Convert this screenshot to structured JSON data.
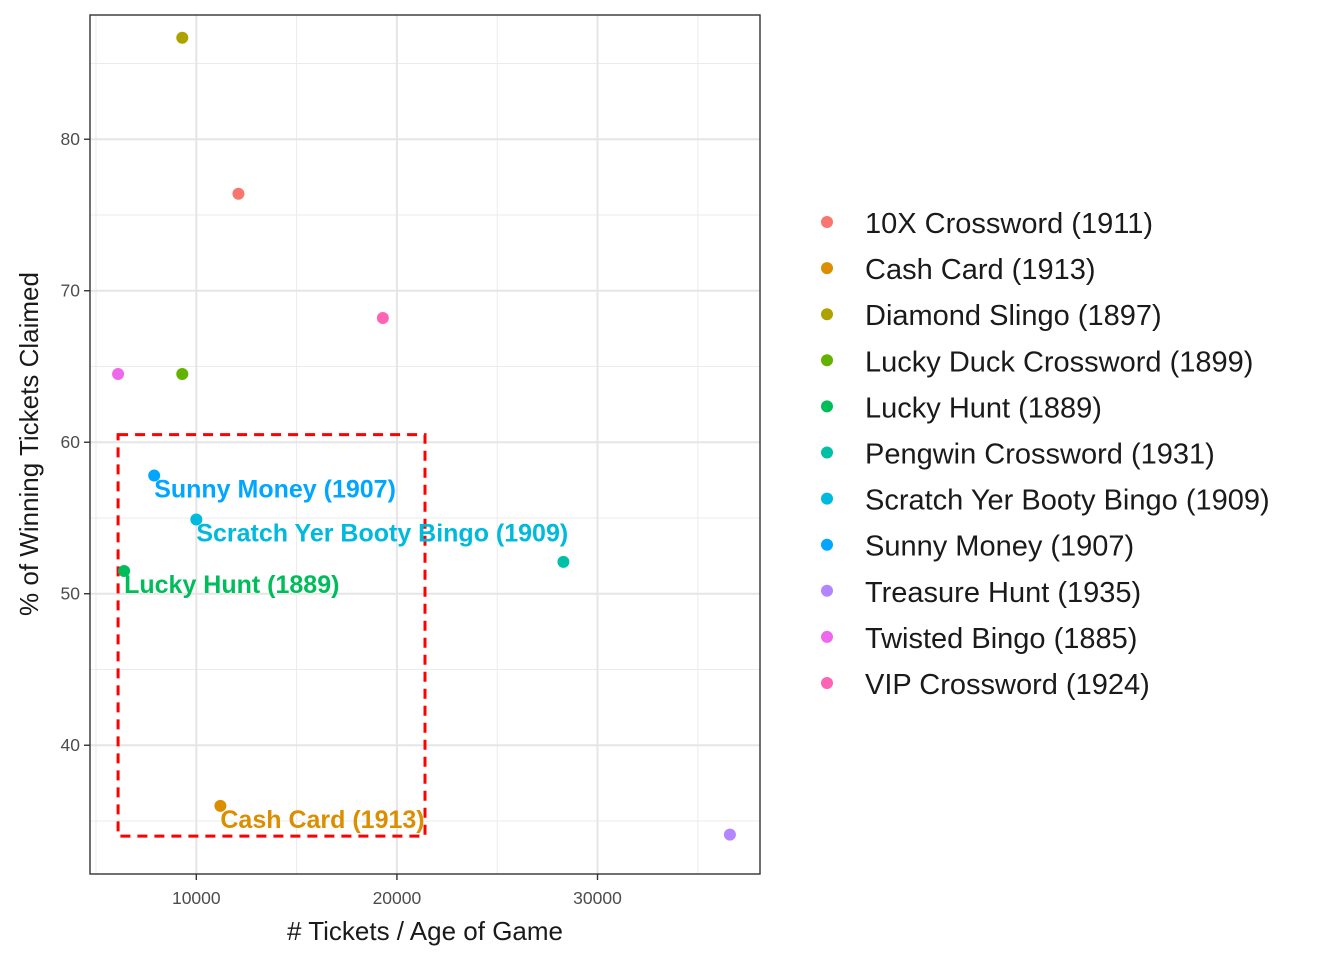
{
  "chart_data": {
    "type": "scatter",
    "xlabel": "# Tickets / Age of Game",
    "ylabel": "% of Winning Tickets Claimed",
    "xlim": [
      4700,
      38100
    ],
    "ylim": [
      31.5,
      88.2
    ],
    "x_ticks": [
      10000,
      20000,
      30000
    ],
    "y_ticks": [
      40,
      50,
      60,
      70,
      80
    ],
    "grid": true,
    "legend_position": "right",
    "series": [
      {
        "name": "10X Crossword (1911)",
        "color": "#F8766D",
        "x": 12100,
        "y": 76.4,
        "label": ""
      },
      {
        "name": "Cash Card (1913)",
        "color": "#DB8E00",
        "x": 11200,
        "y": 36.0,
        "label": "Cash Card (1913)"
      },
      {
        "name": "Diamond Slingo (1897)",
        "color": "#AEA200",
        "x": 9300,
        "y": 86.7,
        "label": ""
      },
      {
        "name": "Lucky Duck Crossword (1899)",
        "color": "#64B200",
        "x": 9300,
        "y": 64.5,
        "label": ""
      },
      {
        "name": "Lucky Hunt (1889)",
        "color": "#00BD5C",
        "x": 6400,
        "y": 51.5,
        "label": "Lucky Hunt (1889)"
      },
      {
        "name": "Pengwin Crossword (1931)",
        "color": "#00C1A7",
        "x": 28300,
        "y": 52.1,
        "label": ""
      },
      {
        "name": "Scratch Yer Booty Bingo (1909)",
        "color": "#00BADE",
        "x": 10000,
        "y": 54.9,
        "label": "Scratch Yer Booty Bingo (1909)"
      },
      {
        "name": "Sunny Money (1907)",
        "color": "#00A6FF",
        "x": 7900,
        "y": 57.8,
        "label": "Sunny Money (1907)"
      },
      {
        "name": "Treasure Hunt (1935)",
        "color": "#B385FF",
        "x": 36600,
        "y": 34.1,
        "label": ""
      },
      {
        "name": "Twisted Bingo (1885)",
        "color": "#EF67EB",
        "x": 6100,
        "y": 64.5,
        "label": ""
      },
      {
        "name": "VIP Crossword (1924)",
        "color": "#FF63B6",
        "x": 19300,
        "y": 68.2,
        "label": ""
      }
    ],
    "highlight_box": {
      "x_range": [
        6100,
        21400
      ],
      "y_range": [
        34.0,
        60.5
      ],
      "color": "#FF0000",
      "style": "dashed"
    }
  }
}
